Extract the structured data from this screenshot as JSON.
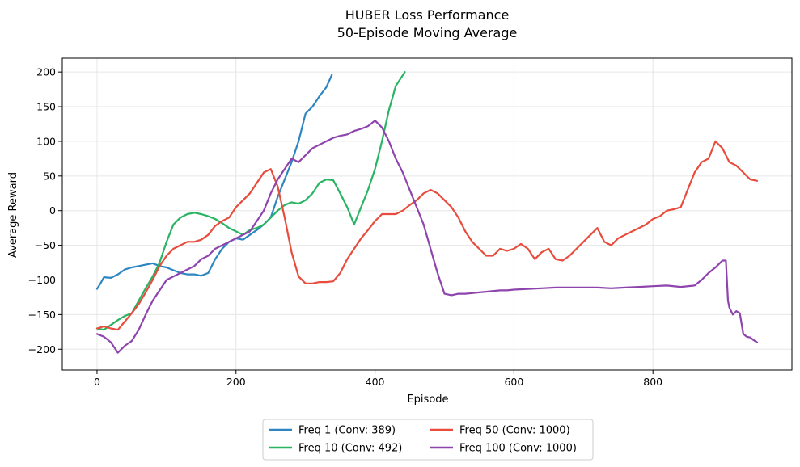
{
  "chart_data": {
    "type": "line",
    "title": "HUBER Loss Performance",
    "subtitle": "50-Episode Moving Average",
    "xlabel": "Episode",
    "ylabel": "Average Reward",
    "xlim": [
      -50,
      1000
    ],
    "ylim": [
      -230,
      220
    ],
    "xticks": [
      0,
      200,
      400,
      600,
      800
    ],
    "yticks": [
      -200,
      -150,
      -100,
      -50,
      0,
      50,
      100,
      150,
      200
    ],
    "grid": true,
    "legend_position": "bottom-center",
    "series": [
      {
        "name": "Freq 1 (Conv: 389)",
        "color": "#2e86c1",
        "x": [
          0,
          5,
          10,
          20,
          30,
          40,
          50,
          60,
          70,
          80,
          90,
          100,
          110,
          120,
          130,
          140,
          150,
          160,
          170,
          180,
          190,
          200,
          210,
          220,
          230,
          240,
          250,
          260,
          270,
          280,
          290,
          300,
          310,
          320,
          330,
          338
        ],
        "y": [
          -113,
          -105,
          -96,
          -97,
          -92,
          -85,
          -82,
          -80,
          -78,
          -76,
          -80,
          -82,
          -86,
          -90,
          -92,
          -92,
          -94,
          -90,
          -70,
          -55,
          -45,
          -40,
          -42,
          -35,
          -28,
          -20,
          -10,
          20,
          45,
          70,
          100,
          140,
          150,
          165,
          178,
          196
        ]
      },
      {
        "name": "Freq 10 (Conv: 492)",
        "color": "#28b463",
        "x": [
          0,
          10,
          20,
          30,
          40,
          50,
          60,
          70,
          80,
          90,
          100,
          110,
          120,
          130,
          140,
          150,
          160,
          170,
          180,
          190,
          200,
          210,
          220,
          230,
          240,
          250,
          260,
          270,
          280,
          290,
          300,
          310,
          320,
          330,
          340,
          350,
          360,
          370,
          380,
          390,
          400,
          410,
          420,
          430,
          443
        ],
        "y": [
          -170,
          -172,
          -165,
          -158,
          -152,
          -148,
          -130,
          -112,
          -95,
          -75,
          -45,
          -20,
          -10,
          -5,
          -3,
          -5,
          -8,
          -12,
          -18,
          -25,
          -30,
          -35,
          -28,
          -25,
          -20,
          -10,
          0,
          8,
          12,
          10,
          15,
          25,
          40,
          45,
          44,
          25,
          5,
          -20,
          5,
          30,
          60,
          100,
          145,
          180,
          200
        ]
      },
      {
        "name": "Freq 50 (Conv: 1000)",
        "color": "#e74c3c",
        "x": [
          0,
          10,
          20,
          30,
          40,
          50,
          60,
          70,
          80,
          90,
          100,
          110,
          120,
          130,
          140,
          150,
          160,
          170,
          180,
          190,
          200,
          210,
          220,
          230,
          240,
          250,
          260,
          270,
          280,
          290,
          300,
          310,
          320,
          330,
          340,
          350,
          360,
          370,
          380,
          390,
          400,
          410,
          420,
          430,
          440,
          450,
          460,
          470,
          480,
          490,
          500,
          510,
          520,
          530,
          540,
          550,
          560,
          570,
          580,
          590,
          600,
          610,
          620,
          630,
          640,
          650,
          660,
          670,
          680,
          690,
          700,
          710,
          720,
          730,
          740,
          750,
          760,
          770,
          780,
          790,
          800,
          810,
          820,
          830,
          840,
          850,
          860,
          870,
          880,
          890,
          900,
          910,
          920,
          930,
          940,
          950
        ],
        "y": [
          -170,
          -167,
          -170,
          -172,
          -160,
          -148,
          -135,
          -118,
          -100,
          -80,
          -65,
          -55,
          -50,
          -45,
          -45,
          -42,
          -35,
          -22,
          -15,
          -10,
          5,
          15,
          25,
          40,
          55,
          60,
          35,
          -10,
          -60,
          -95,
          -105,
          -105,
          -103,
          -103,
          -102,
          -90,
          -70,
          -55,
          -40,
          -28,
          -15,
          -5,
          -5,
          -5,
          0,
          8,
          15,
          25,
          30,
          25,
          15,
          5,
          -10,
          -30,
          -45,
          -55,
          -65,
          -65,
          -55,
          -58,
          -55,
          -48,
          -55,
          -70,
          -60,
          -55,
          -70,
          -72,
          -65,
          -55,
          -45,
          -35,
          -25,
          -45,
          -50,
          -40,
          -35,
          -30,
          -25,
          -20,
          -12,
          -8,
          0,
          2,
          5,
          30,
          55,
          70,
          75,
          100,
          90,
          70,
          65,
          55,
          45,
          43
        ]
      },
      {
        "name": "Freq 100 (Conv: 1000)",
        "color": "#8e44ad",
        "x": [
          0,
          10,
          20,
          30,
          40,
          50,
          60,
          70,
          80,
          90,
          100,
          110,
          120,
          130,
          140,
          150,
          160,
          170,
          180,
          190,
          200,
          210,
          220,
          230,
          240,
          250,
          260,
          270,
          280,
          290,
          300,
          310,
          320,
          330,
          340,
          350,
          360,
          370,
          380,
          390,
          400,
          410,
          420,
          430,
          440,
          450,
          460,
          470,
          480,
          490,
          500,
          510,
          520,
          530,
          540,
          550,
          560,
          570,
          580,
          590,
          600,
          620,
          640,
          660,
          680,
          700,
          720,
          740,
          760,
          780,
          800,
          820,
          840,
          860,
          870,
          880,
          890,
          900,
          905,
          908,
          910,
          915,
          920,
          925,
          930,
          935,
          940,
          945,
          950
        ],
        "y": [
          -178,
          -182,
          -190,
          -205,
          -195,
          -188,
          -172,
          -150,
          -130,
          -115,
          -100,
          -95,
          -90,
          -85,
          -80,
          -70,
          -65,
          -55,
          -50,
          -45,
          -40,
          -35,
          -30,
          -15,
          0,
          25,
          45,
          60,
          75,
          70,
          80,
          90,
          95,
          100,
          105,
          108,
          110,
          115,
          118,
          122,
          130,
          120,
          100,
          75,
          55,
          30,
          5,
          -20,
          -55,
          -90,
          -120,
          -122,
          -120,
          -120,
          -119,
          -118,
          -117,
          -116,
          -115,
          -115,
          -114,
          -113,
          -112,
          -111,
          -111,
          -111,
          -111,
          -112,
          -111,
          -110,
          -109,
          -108,
          -110,
          -108,
          -100,
          -90,
          -82,
          -72,
          -72,
          -130,
          -140,
          -150,
          -145,
          -148,
          -178,
          -182,
          -183,
          -187,
          -190
        ]
      }
    ]
  }
}
